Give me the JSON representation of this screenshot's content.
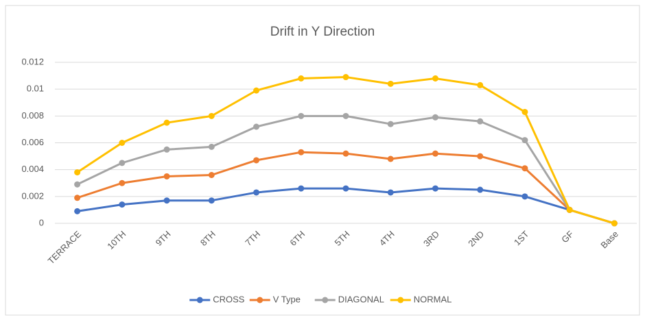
{
  "chart_data": {
    "type": "line",
    "title": "Drift in Y Direction",
    "categories": [
      "TERRACE",
      "10TH",
      "9TH",
      "8TH",
      "7TH",
      "6TH",
      "5TH",
      "4TH",
      "3RD",
      "2ND",
      "1ST",
      "GF",
      "Base"
    ],
    "series": [
      {
        "name": "CROSS",
        "color": "#4472c4",
        "values": [
          0.0009,
          0.0014,
          0.0017,
          0.0017,
          0.0023,
          0.0026,
          0.0026,
          0.0023,
          0.0026,
          0.0025,
          0.002,
          0.001,
          0
        ]
      },
      {
        "name": "V Type",
        "color": "#ed7d31",
        "values": [
          0.0019,
          0.003,
          0.0035,
          0.0036,
          0.0047,
          0.0053,
          0.0052,
          0.0048,
          0.0052,
          0.005,
          0.0041,
          0.001,
          0
        ]
      },
      {
        "name": "DIAGONAL",
        "color": "#a5a5a5",
        "values": [
          0.0029,
          0.0045,
          0.0055,
          0.0057,
          0.0072,
          0.008,
          0.008,
          0.0074,
          0.0079,
          0.0076,
          0.0062,
          0.001,
          0
        ]
      },
      {
        "name": "NORMAL",
        "color": "#ffc000",
        "values": [
          0.0038,
          0.006,
          0.0075,
          0.008,
          0.0099,
          0.0108,
          0.0109,
          0.0104,
          0.0108,
          0.0103,
          0.0083,
          0.001,
          0
        ]
      }
    ],
    "ylim": [
      0,
      0.012
    ],
    "yticks": [
      0,
      0.002,
      0.004,
      0.006,
      0.008,
      0.01,
      0.012
    ],
    "grid": true,
    "legend": "bottom"
  }
}
